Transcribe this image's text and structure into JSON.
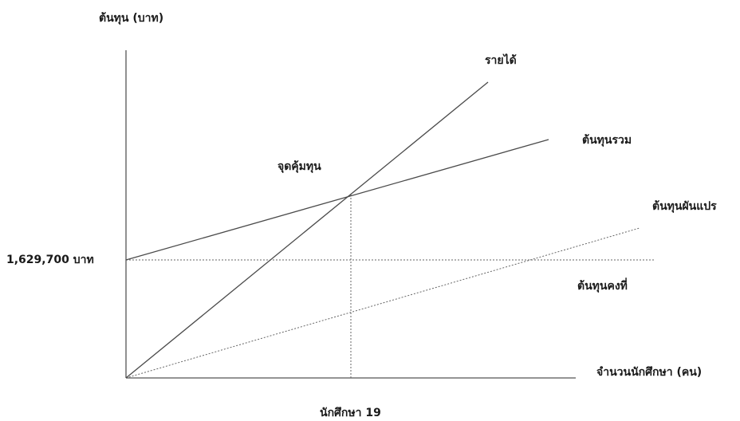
{
  "diagram": {
    "y_axis_label": "ต้นทุน (บาท)",
    "x_axis_label": "จำนวนนักศึกษา (คน)",
    "fixed_cost_value": "1,629,700 บาท",
    "break_even_label": "จุดคุ้มทุน",
    "break_even_x_label": "นักศึกษา 19",
    "lines": {
      "revenue": "รายได้",
      "total_cost": "ต้นทุนรวม",
      "variable_cost": "ต้นทุนผันแปร",
      "fixed_cost": "ต้นทุนคงที่"
    }
  }
}
